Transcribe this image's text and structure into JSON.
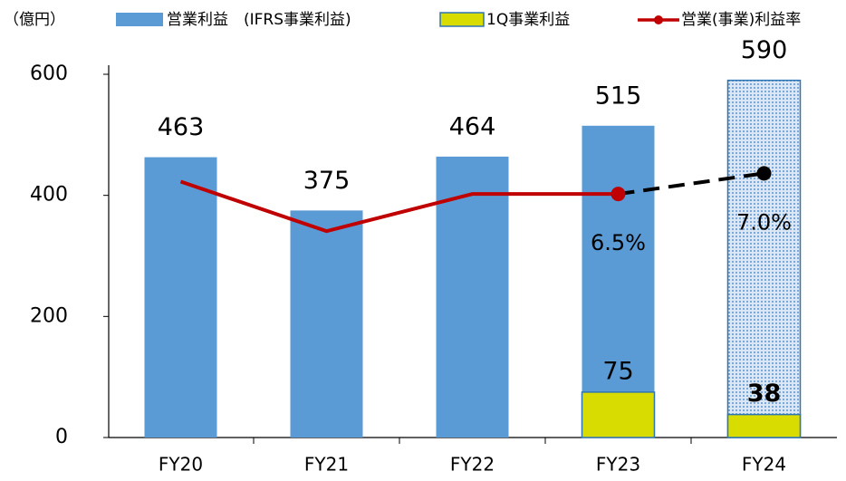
{
  "chart_data": {
    "type": "bar",
    "unit_label": "（億円）",
    "categories": [
      "FY20",
      "FY21",
      "FY22",
      "FY23",
      "FY24"
    ],
    "ylim": [
      0,
      600
    ],
    "yticks": [
      0,
      200,
      400,
      600
    ],
    "y2lim": [
      0.6,
      9.4
    ],
    "series": [
      {
        "name": "営業利益　(IFRS事業利益)",
        "type": "bar",
        "color": "#5b9bd5",
        "values": [
          463,
          375,
          464,
          515,
          590
        ],
        "patterns": [
          "solid",
          "solid",
          "solid",
          "solid",
          "hatched"
        ]
      },
      {
        "name": "1Q事業利益",
        "type": "bar",
        "color": "#d9dc00",
        "values": [
          null,
          null,
          null,
          75,
          38
        ],
        "label_colors": [
          null,
          null,
          null,
          "#000000",
          "#c00000"
        ]
      },
      {
        "name": "営業(事業)利益率",
        "type": "line",
        "axis": "y2",
        "color": "#c00000",
        "values": [
          6.8,
          5.6,
          6.5,
          6.5,
          7.0
        ],
        "value_labels": [
          null,
          null,
          null,
          "6.5%",
          "7.0%"
        ],
        "dashed": [
          false,
          false,
          false,
          false,
          true
        ],
        "marker_colors": [
          null,
          null,
          null,
          "#c00000",
          "#000000"
        ]
      }
    ]
  }
}
